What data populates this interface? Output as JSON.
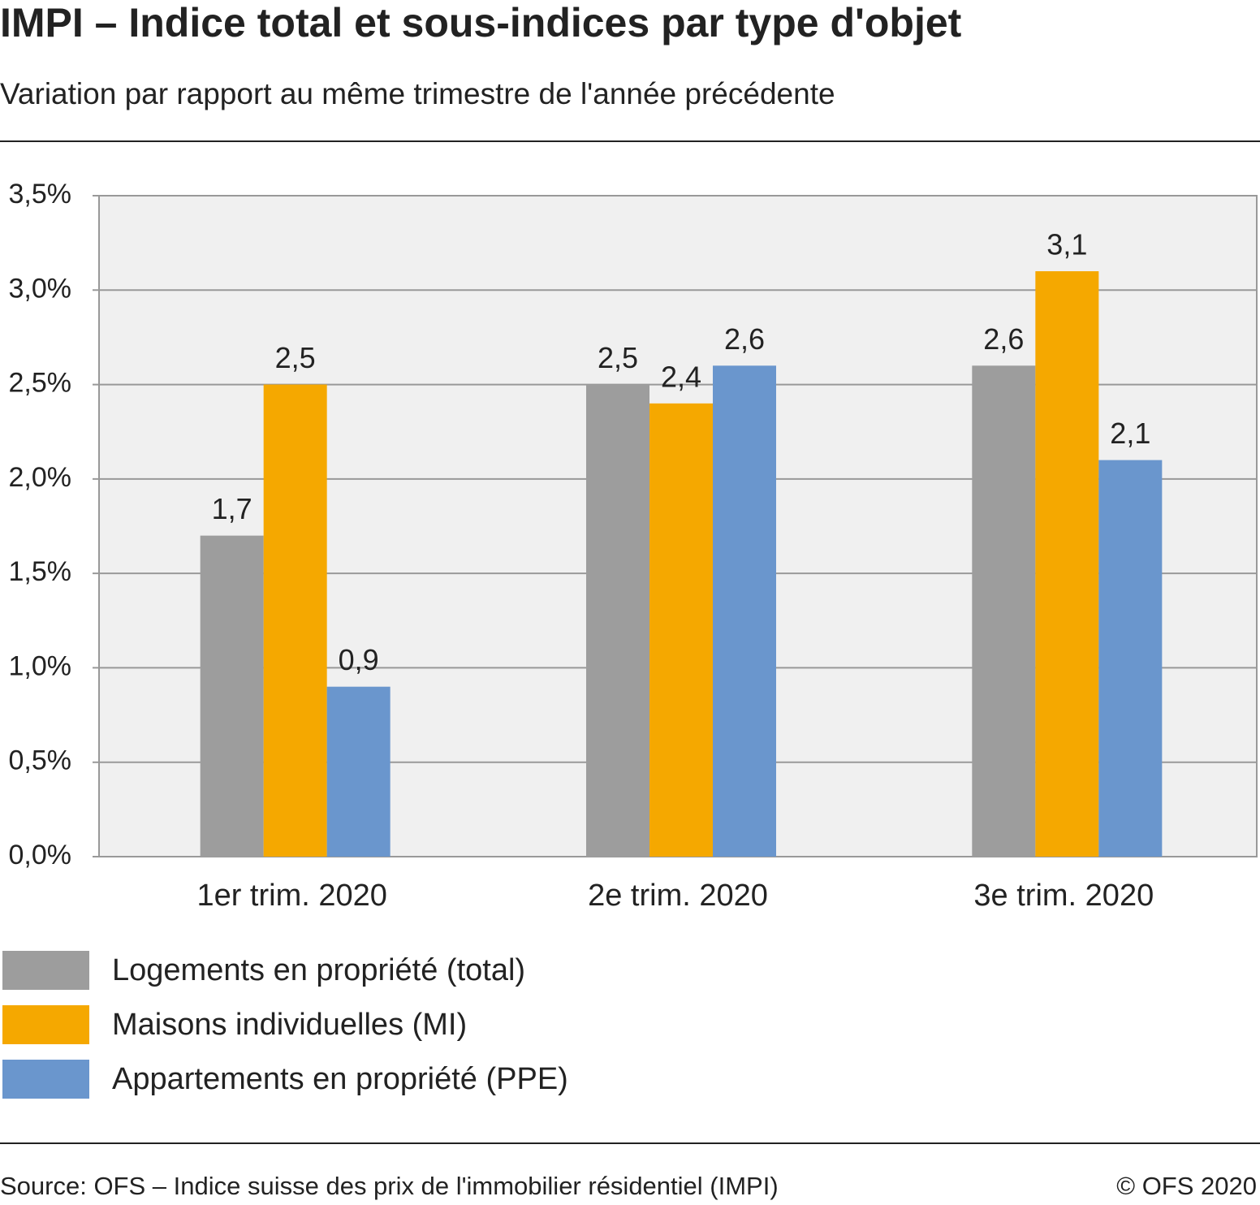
{
  "chart_data": {
    "type": "bar",
    "title": "IMPI – Indice total et sous-indices par type d'objet",
    "subtitle": "Variation par rapport au même trimestre de l'année précédente",
    "categories": [
      "1er trim. 2020",
      "2e trim. 2020",
      "3e trim. 2020"
    ],
    "series": [
      {
        "name": "Logements en propriété (total)",
        "color": "#9d9d9d",
        "values": [
          1.7,
          2.5,
          2.6
        ],
        "value_labels": [
          "1,7",
          "2,5",
          "2,6"
        ]
      },
      {
        "name": "Maisons individuelles (MI)",
        "color": "#f5a800",
        "values": [
          2.5,
          2.4,
          3.1
        ],
        "value_labels": [
          "2,5",
          "2,4",
          "3,1"
        ]
      },
      {
        "name": "Appartements en propriété (PPE)",
        "color": "#6a96cd",
        "values": [
          0.9,
          2.6,
          2.1
        ],
        "value_labels": [
          "0,9",
          "2,6",
          "2,1"
        ]
      }
    ],
    "ylim": [
      0,
      3.5
    ],
    "yticks": [
      {
        "value": 0,
        "label": "0,0%"
      },
      {
        "value": 0.5,
        "label": "0,5%"
      },
      {
        "value": 1,
        "label": "1,0%"
      },
      {
        "value": 1.5,
        "label": "1,5%"
      },
      {
        "value": 2,
        "label": "2,0%"
      },
      {
        "value": 2.5,
        "label": "2,5%"
      },
      {
        "value": 3,
        "label": "3,0%"
      },
      {
        "value": 3.5,
        "label": "3,5%"
      }
    ],
    "grid": true,
    "source": "Source: OFS – Indice suisse des prix de l'immobilier résidentiel (IMPI)",
    "credit": "© OFS 2020"
  }
}
